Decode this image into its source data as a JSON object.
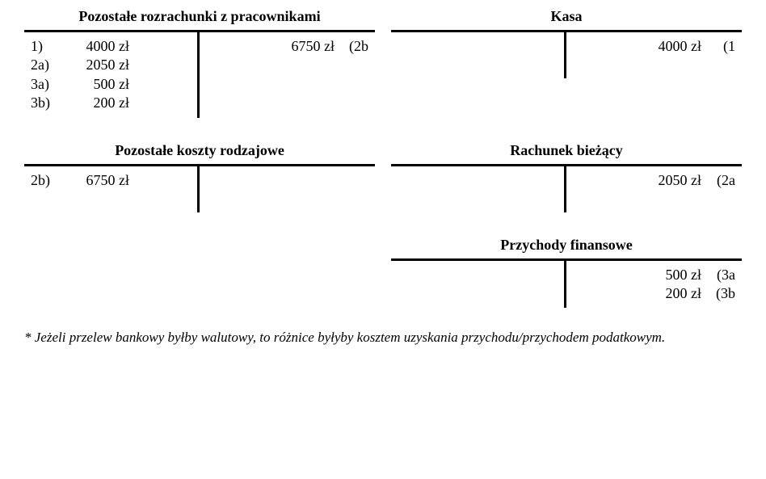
{
  "colors": {
    "text": "#000000",
    "background": "#ffffff",
    "border": "#000000"
  },
  "typography": {
    "font_family": "Georgia, serif",
    "title_fontsize": 18,
    "entry_fontsize": 18,
    "footnote_fontsize": 17,
    "footnote_style": "italic",
    "title_weight": "bold"
  },
  "border_width": 3,
  "accounts": {
    "a1": {
      "title": "Pozostałe rozrachunki z pracownikami",
      "debit": [
        {
          "ref": "1)",
          "amount": "4000 zł"
        },
        {
          "ref": "2a)",
          "amount": "2050 zł"
        },
        {
          "ref": "3a)",
          "amount": "500 zł"
        },
        {
          "ref": "3b)",
          "amount": "200 zł"
        }
      ],
      "credit": [
        {
          "amount": "6750 zł",
          "ref": "(2b"
        }
      ]
    },
    "a2": {
      "title": "Kasa",
      "debit": [],
      "credit": [
        {
          "amount": "4000 zł",
          "ref": "(1"
        }
      ]
    },
    "a3": {
      "title": "Pozostałe koszty rodzajowe",
      "debit": [
        {
          "ref": "2b)",
          "amount": "6750 zł"
        }
      ],
      "credit": []
    },
    "a4": {
      "title": "Rachunek bieżący",
      "debit": [],
      "credit": [
        {
          "amount": "2050 zł",
          "ref": "(2a"
        }
      ]
    },
    "a5": {
      "title": "Przychody finansowe",
      "debit": [],
      "credit": [
        {
          "amount": "500 zł",
          "ref": "(3a"
        },
        {
          "amount": "200 zł",
          "ref": "(3b"
        }
      ]
    }
  },
  "footnote": "* Jeżeli przelew bankowy byłby walutowy, to różnice byłyby kosztem uzyskania przychodu/przychodem podatkowym."
}
